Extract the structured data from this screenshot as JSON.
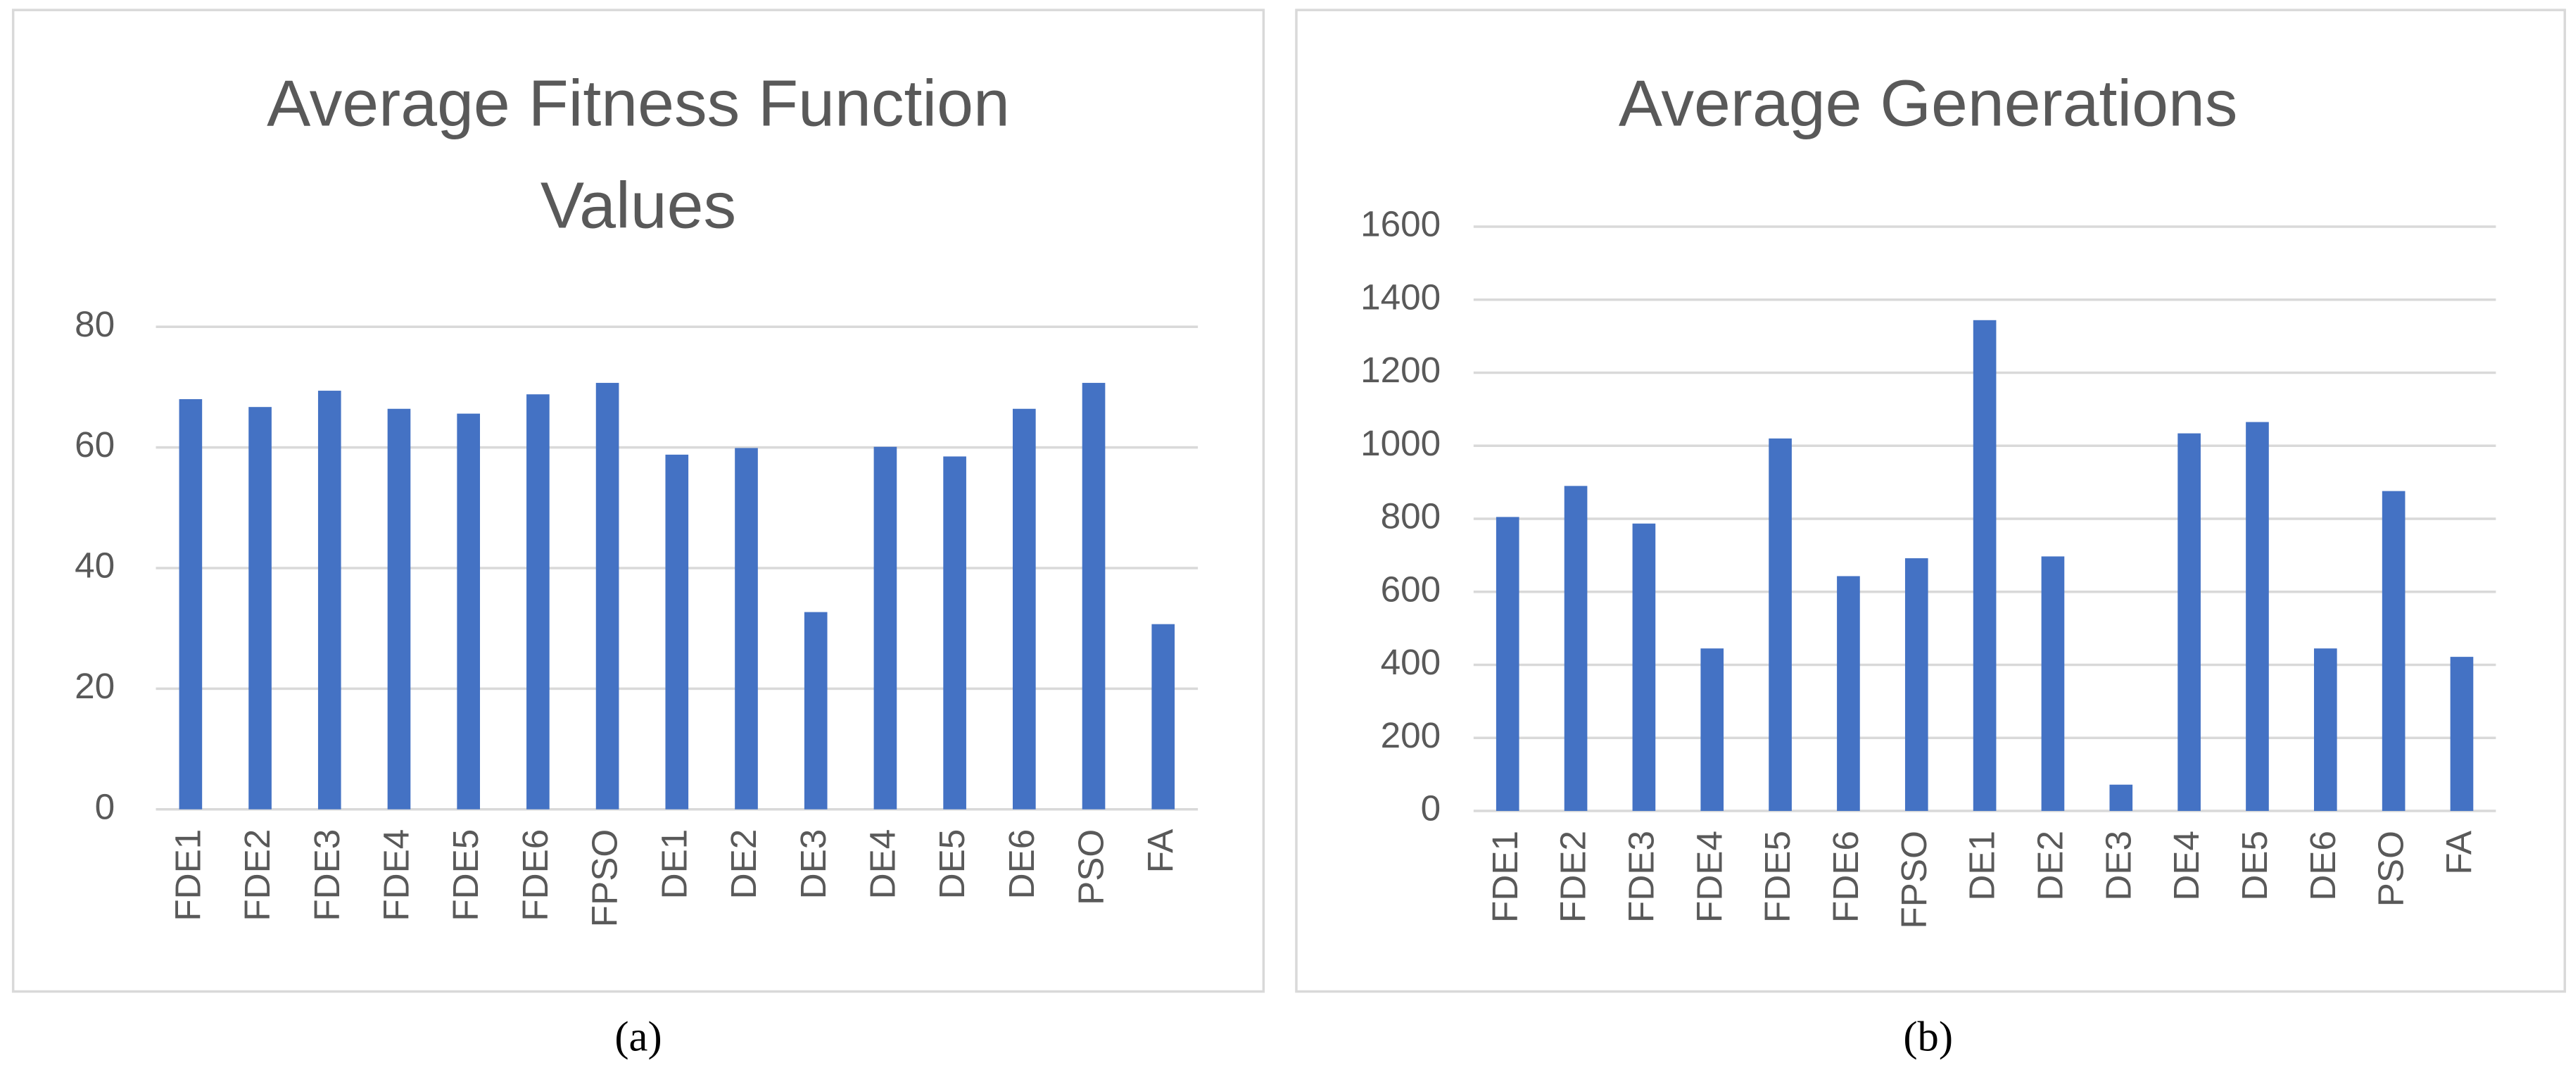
{
  "chart_data": [
    {
      "type": "bar",
      "title": [
        "Average Fitness Function",
        "Values"
      ],
      "caption": "(a)",
      "categories": [
        "FDE1",
        "FDE2",
        "FDE3",
        "FDE4",
        "FDE5",
        "FDE6",
        "FPSO",
        "DE1",
        "DE2",
        "DE3",
        "DE4",
        "DE5",
        "DE6",
        "PSO",
        "FA"
      ],
      "values": [
        68.0,
        66.7,
        69.4,
        66.4,
        65.6,
        68.8,
        70.7,
        58.8,
        59.9,
        32.7,
        60.1,
        58.5,
        66.4,
        70.7,
        30.7
      ],
      "color": "#4472c4",
      "ylim": [
        0,
        80
      ],
      "yticks": [
        0,
        20,
        40,
        60,
        80
      ],
      "grid": true
    },
    {
      "type": "bar",
      "title": [
        "Average Generations"
      ],
      "caption": "(b)",
      "categories": [
        "FDE1",
        "FDE2",
        "FDE3",
        "FDE4",
        "FDE5",
        "FDE6",
        "FPSO",
        "DE1",
        "DE2",
        "DE3",
        "DE4",
        "DE5",
        "DE6",
        "PSO",
        "FA"
      ],
      "values": [
        805,
        890,
        787,
        445,
        1020,
        643,
        692,
        1344,
        697,
        72,
        1034,
        1065,
        445,
        876,
        422
      ],
      "color": "#4472c4",
      "ylim": [
        0,
        1600
      ],
      "yticks": [
        0,
        200,
        400,
        600,
        800,
        1000,
        1200,
        1400,
        1600
      ],
      "grid": true
    }
  ]
}
